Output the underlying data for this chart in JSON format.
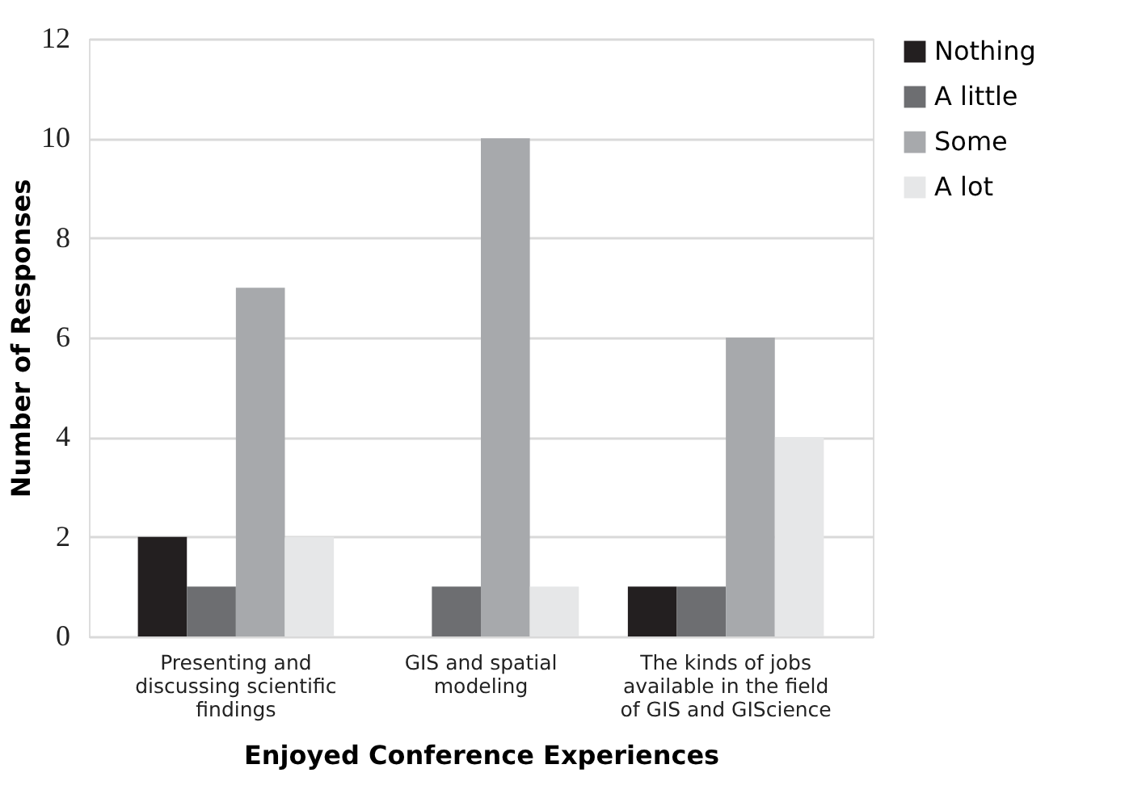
{
  "chart_data": {
    "type": "bar",
    "xlabel": "Enjoyed Conference Experiences",
    "ylabel": "Number of  Responses",
    "categories": [
      "Presenting and discussing scientific findings",
      "GIS and spatial modeling",
      "The kinds of jobs available in the field of GIS and GIScience"
    ],
    "series": [
      {
        "name": "Nothing",
        "color": "#231f20",
        "values": [
          2,
          0,
          1
        ]
      },
      {
        "name": "A little",
        "color": "#6d6e71",
        "values": [
          1,
          1,
          1
        ]
      },
      {
        "name": "Some",
        "color": "#a7a9ac",
        "values": [
          7,
          10,
          6
        ]
      },
      {
        "name": "A lot",
        "color": "#e6e7e8",
        "values": [
          2,
          1,
          4
        ]
      }
    ],
    "ylim": [
      0,
      12
    ],
    "yticks": [
      0,
      2,
      4,
      6,
      8,
      10,
      12
    ],
    "grid": "y",
    "legend": "right"
  }
}
